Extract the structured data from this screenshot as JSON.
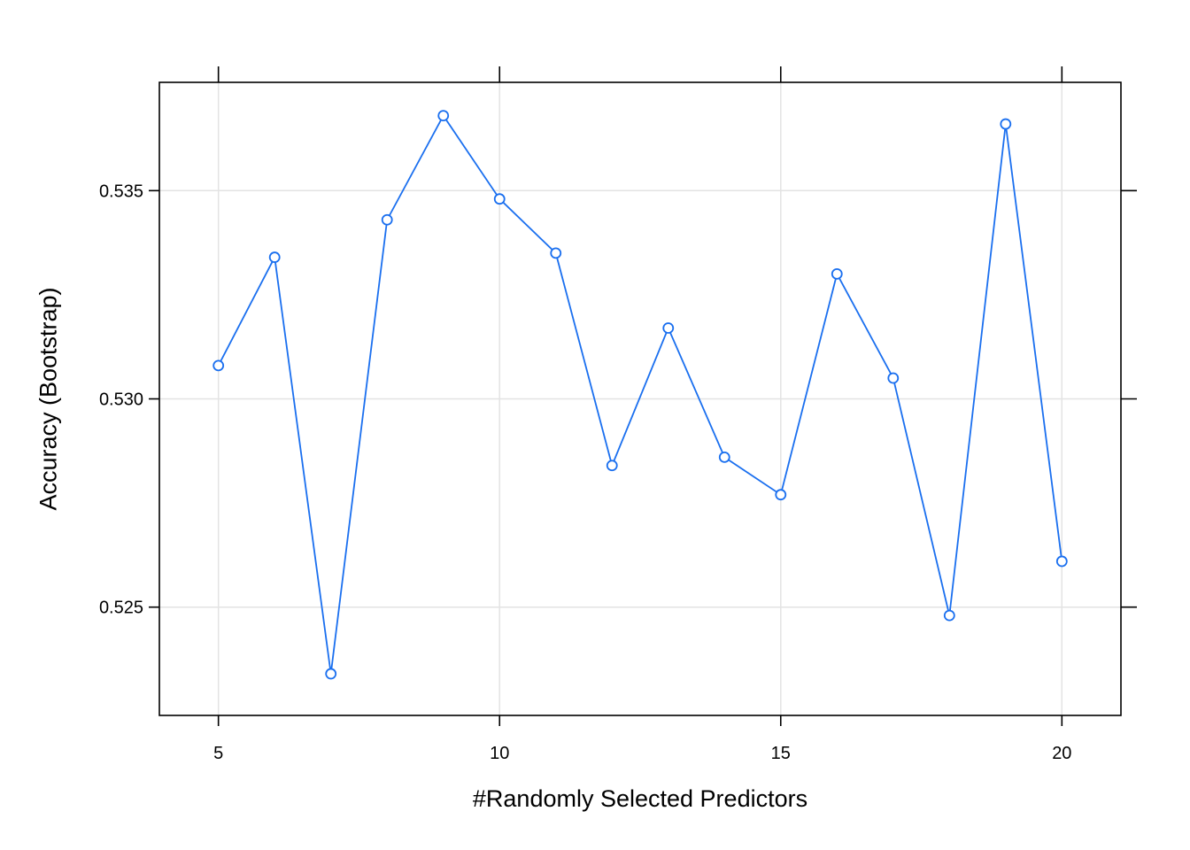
{
  "chart_data": {
    "type": "line",
    "title": "",
    "xlabel": "#Randomly Selected Predictors",
    "ylabel": "Accuracy (Bootstrap)",
    "xlim": [
      3.95,
      21.05
    ],
    "ylim": [
      0.5224,
      0.5376
    ],
    "xticks": [
      5,
      10,
      15,
      20
    ],
    "yticks": [
      0.525,
      0.53,
      0.535
    ],
    "xtick_labels": [
      "5",
      "10",
      "15",
      "20"
    ],
    "ytick_labels": [
      "0.525",
      "0.530",
      "0.535"
    ],
    "grid": true,
    "series": [
      {
        "color": "#1a6fef",
        "marker": "open-circle",
        "x": [
          5,
          6,
          7,
          8,
          9,
          10,
          11,
          12,
          13,
          14,
          15,
          16,
          17,
          18,
          19,
          20
        ],
        "y": [
          0.5308,
          0.5334,
          0.5234,
          0.5343,
          0.5368,
          0.5348,
          0.5335,
          0.5284,
          0.5317,
          0.5286,
          0.5277,
          0.533,
          0.5305,
          0.5248,
          0.5366,
          0.5261
        ]
      }
    ]
  }
}
